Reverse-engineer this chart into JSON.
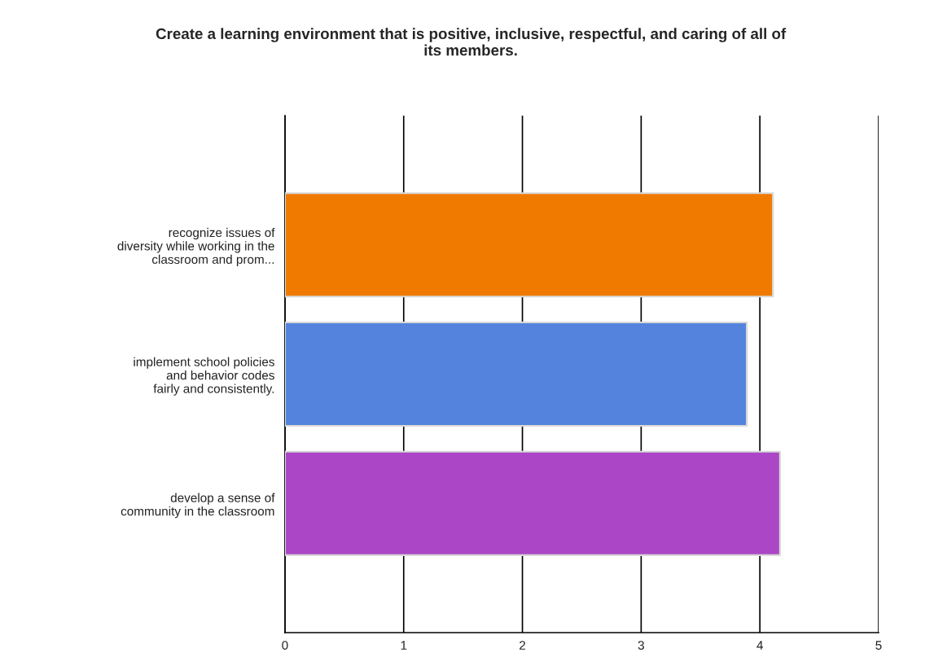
{
  "chart_data": {
    "type": "bar",
    "orientation": "horizontal",
    "title": "Create a learning environment that is positive, inclusive, respectful, and caring of all of\nits members.",
    "categories": [
      "recognize issues of\ndiversity while working in the\nclassroom and prom...",
      "implement school policies\nand behavior codes\nfairly and consistently.",
      "develop a sense of\ncommunity in the classroom"
    ],
    "values": [
      4.11,
      3.89,
      4.17
    ],
    "colors": [
      "#f07a00",
      "#5383dd",
      "#ab47c6"
    ],
    "xlim": [
      0,
      5
    ],
    "xticks": [
      0,
      1,
      2,
      3,
      4,
      5
    ],
    "grid": "x"
  }
}
